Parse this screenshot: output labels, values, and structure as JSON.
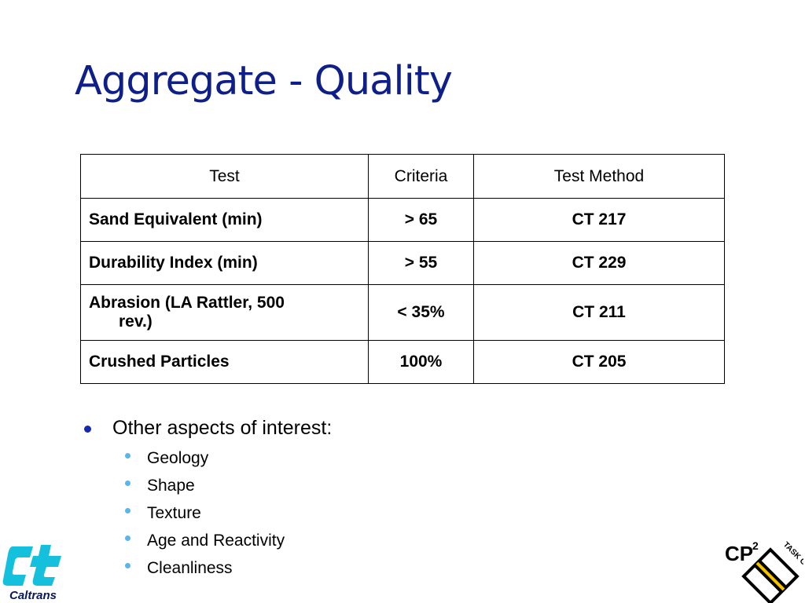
{
  "title": "Aggregate - Quality",
  "table": {
    "headers": [
      "Test",
      "Criteria",
      "Test Method"
    ],
    "rows": [
      {
        "test": "Sand Equivalent (min)",
        "criteria": "> 65",
        "method": "CT 217"
      },
      {
        "test": "Durability Index (min)",
        "criteria": "> 55",
        "method": "CT 229"
      },
      {
        "test_line1": "Abrasion (LA Rattler, 500",
        "test_line2": "rev.)",
        "criteria": "< 35%",
        "method": "CT 211"
      },
      {
        "test": "Crushed Particles",
        "criteria": "100%",
        "method": "CT 205"
      }
    ]
  },
  "bullets": {
    "main": "Other aspects of interest:",
    "sub_items": [
      "Geology",
      "Shape",
      "Texture",
      "Age and Reactivity",
      "Cleanliness"
    ]
  },
  "logos": {
    "left": {
      "name": "caltrans-logo",
      "text": "Caltrans"
    },
    "right": {
      "name": "cp2-task-group-logo",
      "text": "CP",
      "superscript": "2",
      "ribbon_text": "TASK GROUP"
    }
  },
  "colors": {
    "title": "#0f1f8a",
    "main_bullet": "#1428b4",
    "sub_bullet": "#5ab4f0",
    "caltrans": "#14c0dc"
  }
}
